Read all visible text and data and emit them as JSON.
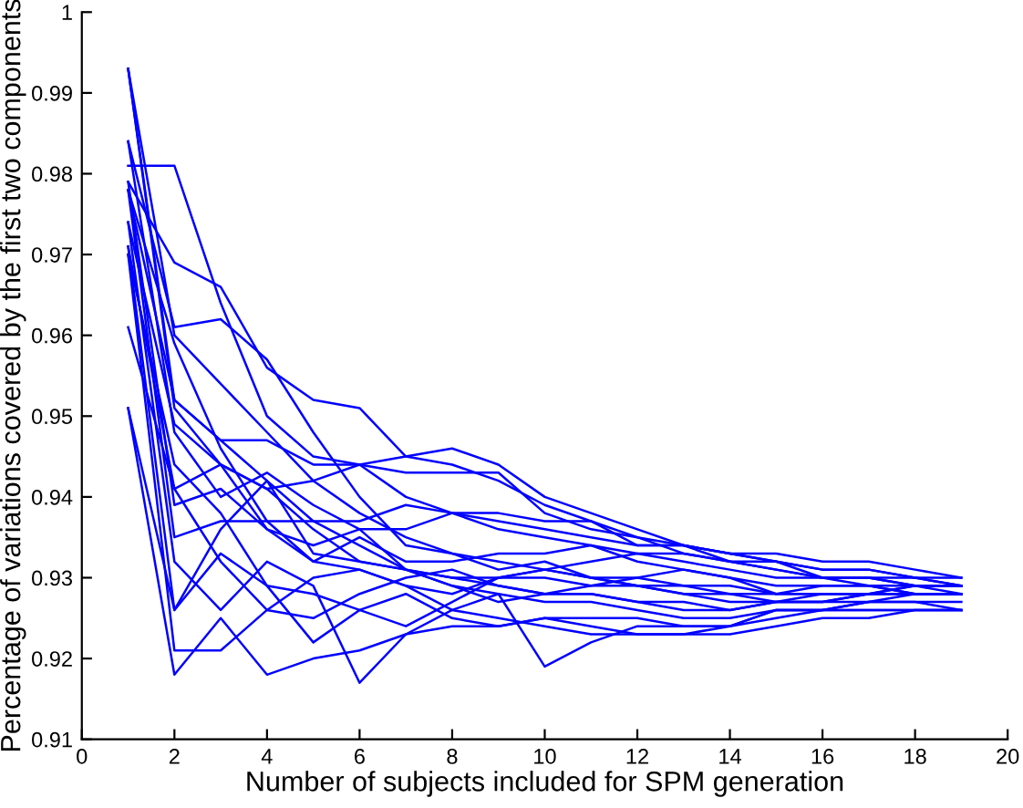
{
  "chart_data": {
    "type": "line",
    "xlabel": "Number of subjects included for SPM generation",
    "ylabel": "Percentage of variations covered by the first two components",
    "x": [
      1,
      2,
      3,
      4,
      5,
      6,
      7,
      8,
      9,
      10,
      11,
      12,
      13,
      14,
      15,
      16,
      17,
      18,
      19
    ],
    "xlim": [
      0,
      20
    ],
    "xticks": [
      0,
      2,
      4,
      6,
      8,
      10,
      12,
      14,
      16,
      18,
      20
    ],
    "ylim": [
      0.91,
      1
    ],
    "yticks": [
      0.91,
      0.92,
      0.93,
      0.94,
      0.95,
      0.96,
      0.97,
      0.98,
      0.99,
      1
    ],
    "grid": false,
    "legend": false,
    "marker": "none",
    "line_style": "solid",
    "series": [
      {
        "color": "#0000ff",
        "values": [
          0.993,
          0.951,
          0.944,
          0.941,
          0.936,
          0.932,
          0.931,
          0.93,
          0.929,
          0.928,
          0.928,
          0.927,
          0.927,
          0.926,
          0.927,
          0.927,
          0.928,
          0.928,
          0.928
        ]
      },
      {
        "color": "#0000ff",
        "values": [
          0.993,
          0.96,
          0.954,
          0.948,
          0.942,
          0.938,
          0.935,
          0.933,
          0.932,
          0.931,
          0.93,
          0.93,
          0.929,
          0.929,
          0.928,
          0.928,
          0.928,
          0.929,
          0.929
        ]
      },
      {
        "color": "#0000ff",
        "values": [
          0.984,
          0.961,
          0.962,
          0.957,
          0.948,
          0.94,
          0.934,
          0.933,
          0.931,
          0.932,
          0.93,
          0.929,
          0.929,
          0.928,
          0.928,
          0.929,
          0.929,
          0.928,
          0.928
        ]
      },
      {
        "color": "#0000ff",
        "values": [
          0.981,
          0.981,
          0.964,
          0.95,
          0.945,
          0.944,
          0.94,
          0.938,
          0.938,
          0.937,
          0.937,
          0.935,
          0.934,
          0.933,
          0.932,
          0.931,
          0.931,
          0.93,
          0.929
        ]
      },
      {
        "color": "#0000ff",
        "values": [
          0.979,
          0.969,
          0.966,
          0.956,
          0.952,
          0.951,
          0.945,
          0.944,
          0.942,
          0.939,
          0.937,
          0.934,
          0.934,
          0.933,
          0.933,
          0.932,
          0.932,
          0.931,
          0.93
        ]
      },
      {
        "color": "#0000ff",
        "values": [
          0.978,
          0.952,
          0.947,
          0.947,
          0.944,
          0.944,
          0.943,
          0.943,
          0.943,
          0.938,
          0.936,
          0.935,
          0.933,
          0.932,
          0.931,
          0.93,
          0.93,
          0.929,
          0.928
        ]
      },
      {
        "color": "#0000ff",
        "values": [
          0.974,
          0.949,
          0.944,
          0.936,
          0.932,
          0.931,
          0.929,
          0.926,
          0.925,
          0.924,
          0.923,
          0.923,
          0.923,
          0.924,
          0.925,
          0.926,
          0.926,
          0.926,
          0.926
        ]
      },
      {
        "color": "#0000ff",
        "values": [
          0.971,
          0.941,
          0.944,
          0.941,
          0.942,
          0.944,
          0.945,
          0.946,
          0.944,
          0.94,
          0.938,
          0.936,
          0.934,
          0.933,
          0.932,
          0.93,
          0.93,
          0.929,
          0.929
        ]
      },
      {
        "color": "#0000ff",
        "values": [
          0.97,
          0.921,
          0.921,
          0.926,
          0.93,
          0.931,
          0.929,
          0.928,
          0.93,
          0.93,
          0.929,
          0.929,
          0.928,
          0.928,
          0.927,
          0.928,
          0.928,
          0.929,
          0.929
        ]
      },
      {
        "color": "#0000ff",
        "values": [
          0.961,
          0.941,
          0.932,
          0.926,
          0.925,
          0.928,
          0.93,
          0.931,
          0.929,
          0.928,
          0.928,
          0.927,
          0.926,
          0.926,
          0.927,
          0.927,
          0.927,
          0.928,
          0.928
        ]
      },
      {
        "color": "#0000ff",
        "values": [
          0.951,
          0.926,
          0.933,
          0.929,
          0.928,
          0.926,
          0.928,
          0.925,
          0.924,
          0.925,
          0.924,
          0.923,
          0.923,
          0.923,
          0.924,
          0.925,
          0.925,
          0.926,
          0.926
        ]
      },
      {
        "color": "#0000ff",
        "values": [
          0.951,
          0.918,
          0.925,
          0.918,
          0.92,
          0.921,
          0.923,
          0.924,
          0.924,
          0.925,
          0.925,
          0.925,
          0.924,
          0.924,
          0.926,
          0.926,
          0.927,
          0.927,
          0.926
        ]
      },
      {
        "color": "#0000ff",
        "values": [
          0.978,
          0.935,
          0.937,
          0.937,
          0.932,
          0.935,
          0.932,
          0.932,
          0.933,
          0.933,
          0.934,
          0.932,
          0.931,
          0.93,
          0.928,
          0.928,
          0.928,
          0.928,
          0.928
        ]
      },
      {
        "color": "#0000ff",
        "values": [
          0.984,
          0.948,
          0.94,
          0.943,
          0.939,
          0.936,
          0.931,
          0.929,
          0.927,
          0.928,
          0.929,
          0.93,
          0.931,
          0.93,
          0.929,
          0.929,
          0.929,
          0.928,
          0.928
        ]
      },
      {
        "color": "#0000ff",
        "values": [
          0.974,
          0.932,
          0.926,
          0.932,
          0.929,
          0.917,
          0.923,
          0.926,
          0.928,
          0.919,
          0.922,
          0.924,
          0.924,
          0.924,
          0.926,
          0.926,
          0.927,
          0.927,
          0.927
        ]
      },
      {
        "color": "#0000ff",
        "values": [
          0.97,
          0.944,
          0.938,
          0.929,
          0.922,
          0.926,
          0.924,
          0.927,
          0.93,
          0.931,
          0.932,
          0.933,
          0.932,
          0.931,
          0.93,
          0.93,
          0.929,
          0.929,
          0.929
        ]
      },
      {
        "color": "#0000ff",
        "values": [
          0.979,
          0.939,
          0.941,
          0.936,
          0.934,
          0.936,
          0.936,
          0.938,
          0.937,
          0.936,
          0.935,
          0.934,
          0.934,
          0.932,
          0.931,
          0.93,
          0.93,
          0.93,
          0.929
        ]
      },
      {
        "color": "#0000ff",
        "values": [
          0.993,
          0.952,
          0.947,
          0.942,
          0.937,
          0.937,
          0.939,
          0.938,
          0.936,
          0.935,
          0.934,
          0.933,
          0.933,
          0.932,
          0.932,
          0.931,
          0.931,
          0.93,
          0.93
        ]
      },
      {
        "color": "#0000ff",
        "values": [
          0.971,
          0.926,
          0.936,
          0.942,
          0.933,
          0.932,
          0.931,
          0.929,
          0.928,
          0.927,
          0.927,
          0.926,
          0.925,
          0.925,
          0.926,
          0.926,
          0.926,
          0.926,
          0.926
        ]
      },
      {
        "color": "#0000ff",
        "values": [
          0.978,
          0.959,
          0.946,
          0.937,
          0.937,
          0.934,
          0.931,
          0.93,
          0.93,
          0.931,
          0.93,
          0.929,
          0.928,
          0.927,
          0.927,
          0.927,
          0.928,
          0.928,
          0.928
        ]
      }
    ]
  }
}
